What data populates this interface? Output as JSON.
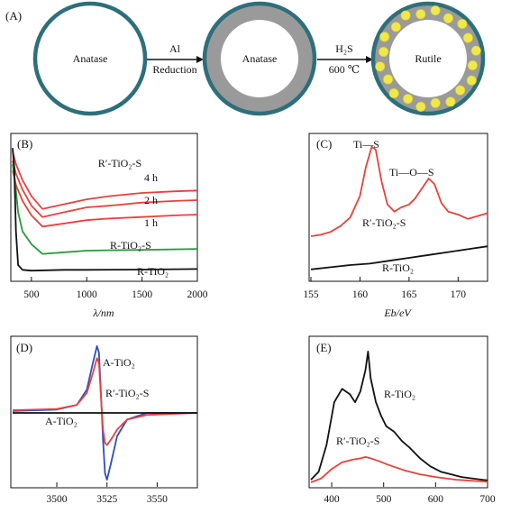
{
  "panel_a": {
    "label": "(A)",
    "spheres": [
      "Anatase",
      "Anatase",
      "Rutile"
    ],
    "step1": {
      "top": "Al",
      "bottom": "Reduction"
    },
    "step2": {
      "top": "H₂S",
      "bottom": "600 ℃"
    },
    "colors": {
      "ring": "#2d6f7a",
      "shell": "#9a9a9a",
      "dots": "#f0e84a"
    }
  },
  "panel_b": {
    "label": "(B)",
    "xlabel": "λ/nm",
    "xticks": [
      "500",
      "1000",
      "1500",
      "2000"
    ],
    "labels": {
      "rs_group": "R′-TiO₂-S",
      "t4": "4 h",
      "t2": "2 h",
      "t1": "1 h",
      "rts": "R-TiO₂-S",
      "rt": "R-TiO₂"
    },
    "chart_data": {
      "type": "line",
      "x_range": [
        330,
        2000
      ],
      "series": [
        {
          "name": "R′-TiO₂-S 4 h",
          "color": "#e8413c",
          "x": [
            330,
            360,
            420,
            500,
            600,
            800,
            1000,
            1200,
            1500,
            1800,
            2000
          ],
          "y": [
            0.8,
            0.72,
            0.62,
            0.52,
            0.44,
            0.47,
            0.5,
            0.52,
            0.54,
            0.55,
            0.555
          ]
        },
        {
          "name": "R′-TiO₂-S 2 h",
          "color": "#e8413c",
          "x": [
            330,
            360,
            420,
            500,
            600,
            800,
            1000,
            1200,
            1500,
            1800,
            2000
          ],
          "y": [
            0.74,
            0.66,
            0.56,
            0.46,
            0.39,
            0.42,
            0.45,
            0.46,
            0.48,
            0.49,
            0.495
          ]
        },
        {
          "name": "R′-TiO₂-S 1 h",
          "color": "#e8413c",
          "x": [
            330,
            360,
            420,
            500,
            600,
            800,
            1000,
            1200,
            1500,
            1800,
            2000
          ],
          "y": [
            0.68,
            0.59,
            0.49,
            0.4,
            0.33,
            0.35,
            0.37,
            0.38,
            0.39,
            0.4,
            0.405
          ]
        },
        {
          "name": "R-TiO₂-S",
          "color": "#2a9a3a",
          "x": [
            330,
            350,
            380,
            420,
            500,
            600,
            800,
            1000,
            1500,
            2000
          ],
          "y": [
            0.72,
            0.62,
            0.42,
            0.3,
            0.22,
            0.16,
            0.17,
            0.18,
            0.185,
            0.19
          ]
        },
        {
          "name": "R-TiO₂",
          "color": "#111111",
          "x": [
            330,
            345,
            360,
            380,
            420,
            500,
            800,
            1000,
            1500,
            2000
          ],
          "y": [
            0.82,
            0.7,
            0.3,
            0.09,
            0.06,
            0.055,
            0.06,
            0.06,
            0.062,
            0.065
          ]
        }
      ]
    }
  },
  "panel_c": {
    "label": "(C)",
    "xlabel": "Eb/eV",
    "xticks": [
      "155",
      "160",
      "165",
      "170"
    ],
    "labels": {
      "tis": "Ti—S",
      "tios": "Ti—O—S",
      "rs": "R′-TiO₂-S",
      "rt": "R-TiO₂"
    },
    "chart_data": {
      "type": "line",
      "x_range": [
        155,
        173
      ],
      "series": [
        {
          "name": "R′-TiO₂-S",
          "color": "#e8413c",
          "x": [
            155,
            156,
            157,
            158,
            159,
            160,
            160.6,
            161.2,
            161.6,
            162.2,
            162.8,
            163.5,
            164.2,
            165,
            165.6,
            166.3,
            167,
            167.6,
            168.3,
            169,
            170,
            171,
            172,
            173
          ],
          "y": [
            0.3,
            0.31,
            0.33,
            0.37,
            0.43,
            0.58,
            0.78,
            0.92,
            0.9,
            0.68,
            0.52,
            0.47,
            0.5,
            0.52,
            0.56,
            0.63,
            0.7,
            0.66,
            0.53,
            0.47,
            0.45,
            0.42,
            0.44,
            0.46
          ]
        },
        {
          "name": "R-TiO₂",
          "color": "#111111",
          "x": [
            155,
            157,
            159,
            161,
            163,
            165,
            167,
            169,
            171,
            173
          ],
          "y": [
            0.07,
            0.085,
            0.1,
            0.11,
            0.13,
            0.15,
            0.17,
            0.19,
            0.21,
            0.23
          ]
        }
      ]
    }
  },
  "panel_d": {
    "label": "(D)",
    "xticks": [
      "3500",
      "3525",
      "3550"
    ],
    "labels": {
      "at_top": "A-TiO₂",
      "rs": "R′-TiO₂-S",
      "at_bot": "A-TiO₂"
    },
    "chart_data": {
      "type": "line",
      "x_range": [
        3478,
        3570
      ],
      "series": [
        {
          "name": "A-TiO₂",
          "color": "#2a4fc0",
          "x": [
            3478,
            3500,
            3510,
            3515,
            3518,
            3520,
            3521,
            3522,
            3523,
            3524,
            3525,
            3527,
            3530,
            3535,
            3545,
            3570
          ],
          "y": [
            0.03,
            0.05,
            0.12,
            0.35,
            0.75,
            1.0,
            0.9,
            0.3,
            -0.4,
            -0.9,
            -1.0,
            -0.75,
            -0.35,
            -0.1,
            0.0,
            0.0
          ]
        },
        {
          "name": "R′-TiO₂-S",
          "color": "#e8413c",
          "x": [
            3478,
            3500,
            3510,
            3515,
            3518,
            3520,
            3521,
            3522,
            3523,
            3524,
            3525,
            3527,
            3530,
            3535,
            3545,
            3570
          ],
          "y": [
            0.04,
            0.06,
            0.12,
            0.3,
            0.6,
            0.82,
            0.75,
            0.25,
            -0.25,
            -0.45,
            -0.48,
            -0.4,
            -0.25,
            -0.1,
            -0.03,
            0.0
          ]
        },
        {
          "name": "A-TiO₂ (flat)",
          "color": "#111111",
          "x": [
            3478,
            3500,
            3525,
            3550,
            3570
          ],
          "y": [
            0.0,
            0.0,
            0.0,
            0.0,
            0.0
          ]
        }
      ]
    }
  },
  "panel_e": {
    "label": "(E)",
    "xticks": [
      "400",
      "500",
      "600",
      "700"
    ],
    "labels": {
      "rt": "R-TiO₂",
      "rs": "R′-TiO₂-S"
    },
    "chart_data": {
      "type": "line",
      "x_range": [
        360,
        700
      ],
      "series": [
        {
          "name": "R-TiO₂",
          "color": "#111111",
          "x": [
            360,
            375,
            390,
            405,
            420,
            435,
            445,
            455,
            465,
            470,
            475,
            485,
            495,
            505,
            520,
            535,
            550,
            570,
            590,
            610,
            630,
            650,
            670,
            690,
            700
          ],
          "y": [
            0.04,
            0.1,
            0.3,
            0.62,
            0.72,
            0.68,
            0.62,
            0.7,
            0.86,
            1.0,
            0.8,
            0.62,
            0.52,
            0.44,
            0.4,
            0.33,
            0.28,
            0.2,
            0.14,
            0.1,
            0.08,
            0.06,
            0.05,
            0.04,
            0.035
          ]
        },
        {
          "name": "R′-TiO₂-S",
          "color": "#e8413c",
          "x": [
            360,
            380,
            400,
            420,
            440,
            455,
            465,
            475,
            490,
            510,
            540,
            570,
            600,
            640,
            680,
            700
          ],
          "y": [
            0.02,
            0.05,
            0.12,
            0.17,
            0.19,
            0.2,
            0.21,
            0.2,
            0.18,
            0.15,
            0.11,
            0.08,
            0.06,
            0.04,
            0.03,
            0.025
          ]
        }
      ]
    }
  }
}
